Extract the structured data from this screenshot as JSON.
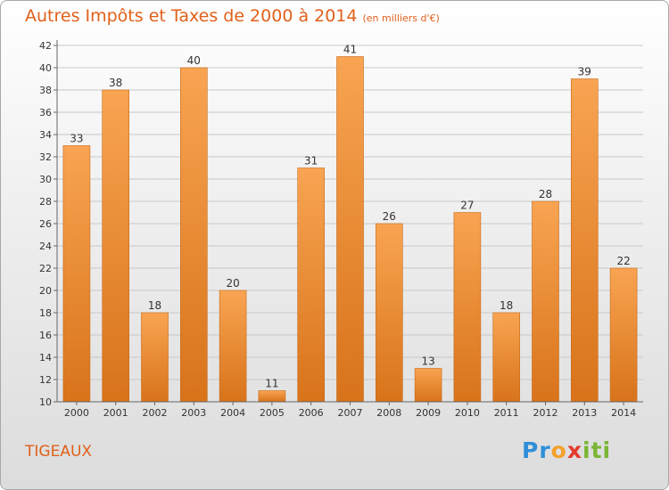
{
  "header": {
    "title": "Autres Impôts et Taxes de 2000 à 2014",
    "subtitle": "(en milliers d'€)"
  },
  "location": "TIGEAUX",
  "logo": {
    "letters": [
      "P",
      "r",
      "o",
      "x",
      "i",
      "t",
      "i"
    ],
    "colors": [
      "#2f8fd8",
      "#2f8fd8",
      "#f3a12b",
      "#e23a2d",
      "#7ab534",
      "#7ab534",
      "#7ab534"
    ]
  },
  "colors": {
    "bar_light": "#f8a452",
    "bar_dark": "#d8731a",
    "title": "#e0601a",
    "grid": "#c8c8c8"
  },
  "chart_data": {
    "type": "bar",
    "categories": [
      "2000",
      "2001",
      "2002",
      "2003",
      "2004",
      "2005",
      "2006",
      "2007",
      "2008",
      "2009",
      "2010",
      "2011",
      "2012",
      "2013",
      "2014"
    ],
    "values": [
      33,
      38,
      18,
      40,
      20,
      11,
      31,
      41,
      26,
      13,
      27,
      18,
      28,
      39,
      22
    ],
    "title": "Autres Impôts et Taxes de 2000 à 2014",
    "ylim": [
      10,
      42
    ],
    "yticks": [
      10,
      12,
      14,
      16,
      18,
      20,
      22,
      24,
      26,
      28,
      30,
      32,
      34,
      36,
      38,
      40,
      42
    ],
    "grid": true
  }
}
